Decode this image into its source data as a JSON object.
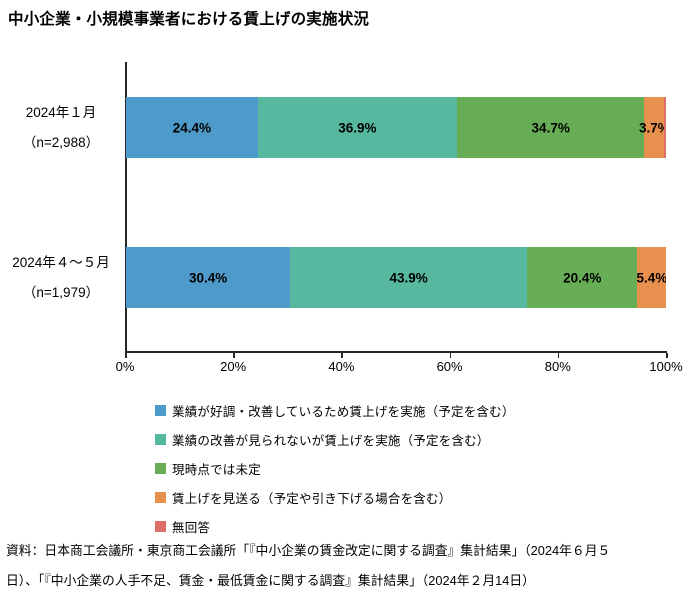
{
  "title": "中小企業・小規模事業者における賃上げの実施状況",
  "chart_data": {
    "type": "bar",
    "orientation": "horizontal",
    "stacked": true,
    "title": "中小企業・小規模事業者における賃上げの実施状況",
    "xlabel": "",
    "ylabel": "",
    "xlim": [
      0,
      100
    ],
    "x_ticks": [
      "0%",
      "20%",
      "40%",
      "60%",
      "80%",
      "100%"
    ],
    "grid": false,
    "legend_position": "bottom",
    "categories": [
      "2024年１月",
      "2024年４～５月"
    ],
    "category_sublabels": [
      "（n=2,988）",
      "（n=1,979）"
    ],
    "series": [
      {
        "name": "業績が好調・改善しているため賃上げを実施（予定を含む）",
        "color": "#4E9ACB",
        "values": [
          24.4,
          30.4
        ],
        "labels": [
          "24.4%",
          "30.4%"
        ]
      },
      {
        "name": "業績の改善が見られないが賃上げを実施（予定を含む）",
        "color": "#56B89E",
        "values": [
          36.9,
          43.9
        ],
        "labels": [
          "36.9%",
          "43.9%"
        ]
      },
      {
        "name": "現時点では未定",
        "color": "#66AD55",
        "values": [
          34.7,
          20.4
        ],
        "labels": [
          "34.7%",
          "20.4%"
        ]
      },
      {
        "name": "賃上げを見送る（予定や引き下げる場合を含む）",
        "color": "#E8914E",
        "values": [
          3.7,
          5.4
        ],
        "labels": [
          "3.7%",
          "5.4%"
        ]
      },
      {
        "name": "無回答",
        "color": "#DC6E66",
        "values": [
          0.3,
          0.1
        ],
        "labels": [
          "",
          ""
        ]
      }
    ]
  },
  "axis": {
    "tick_labels": [
      "0%",
      "20%",
      "40%",
      "60%",
      "80%",
      "100%"
    ]
  },
  "source": {
    "lines": [
      "資料：日本商工会議所・東京商工会議所「『中小企業の賃金改定に関する調査』集計結果」（2024年６月５",
      "日）、「『中小企業の人手不足、賃金・最低賃金に関する調査』集計結果」（2024年２月14日）"
    ]
  }
}
